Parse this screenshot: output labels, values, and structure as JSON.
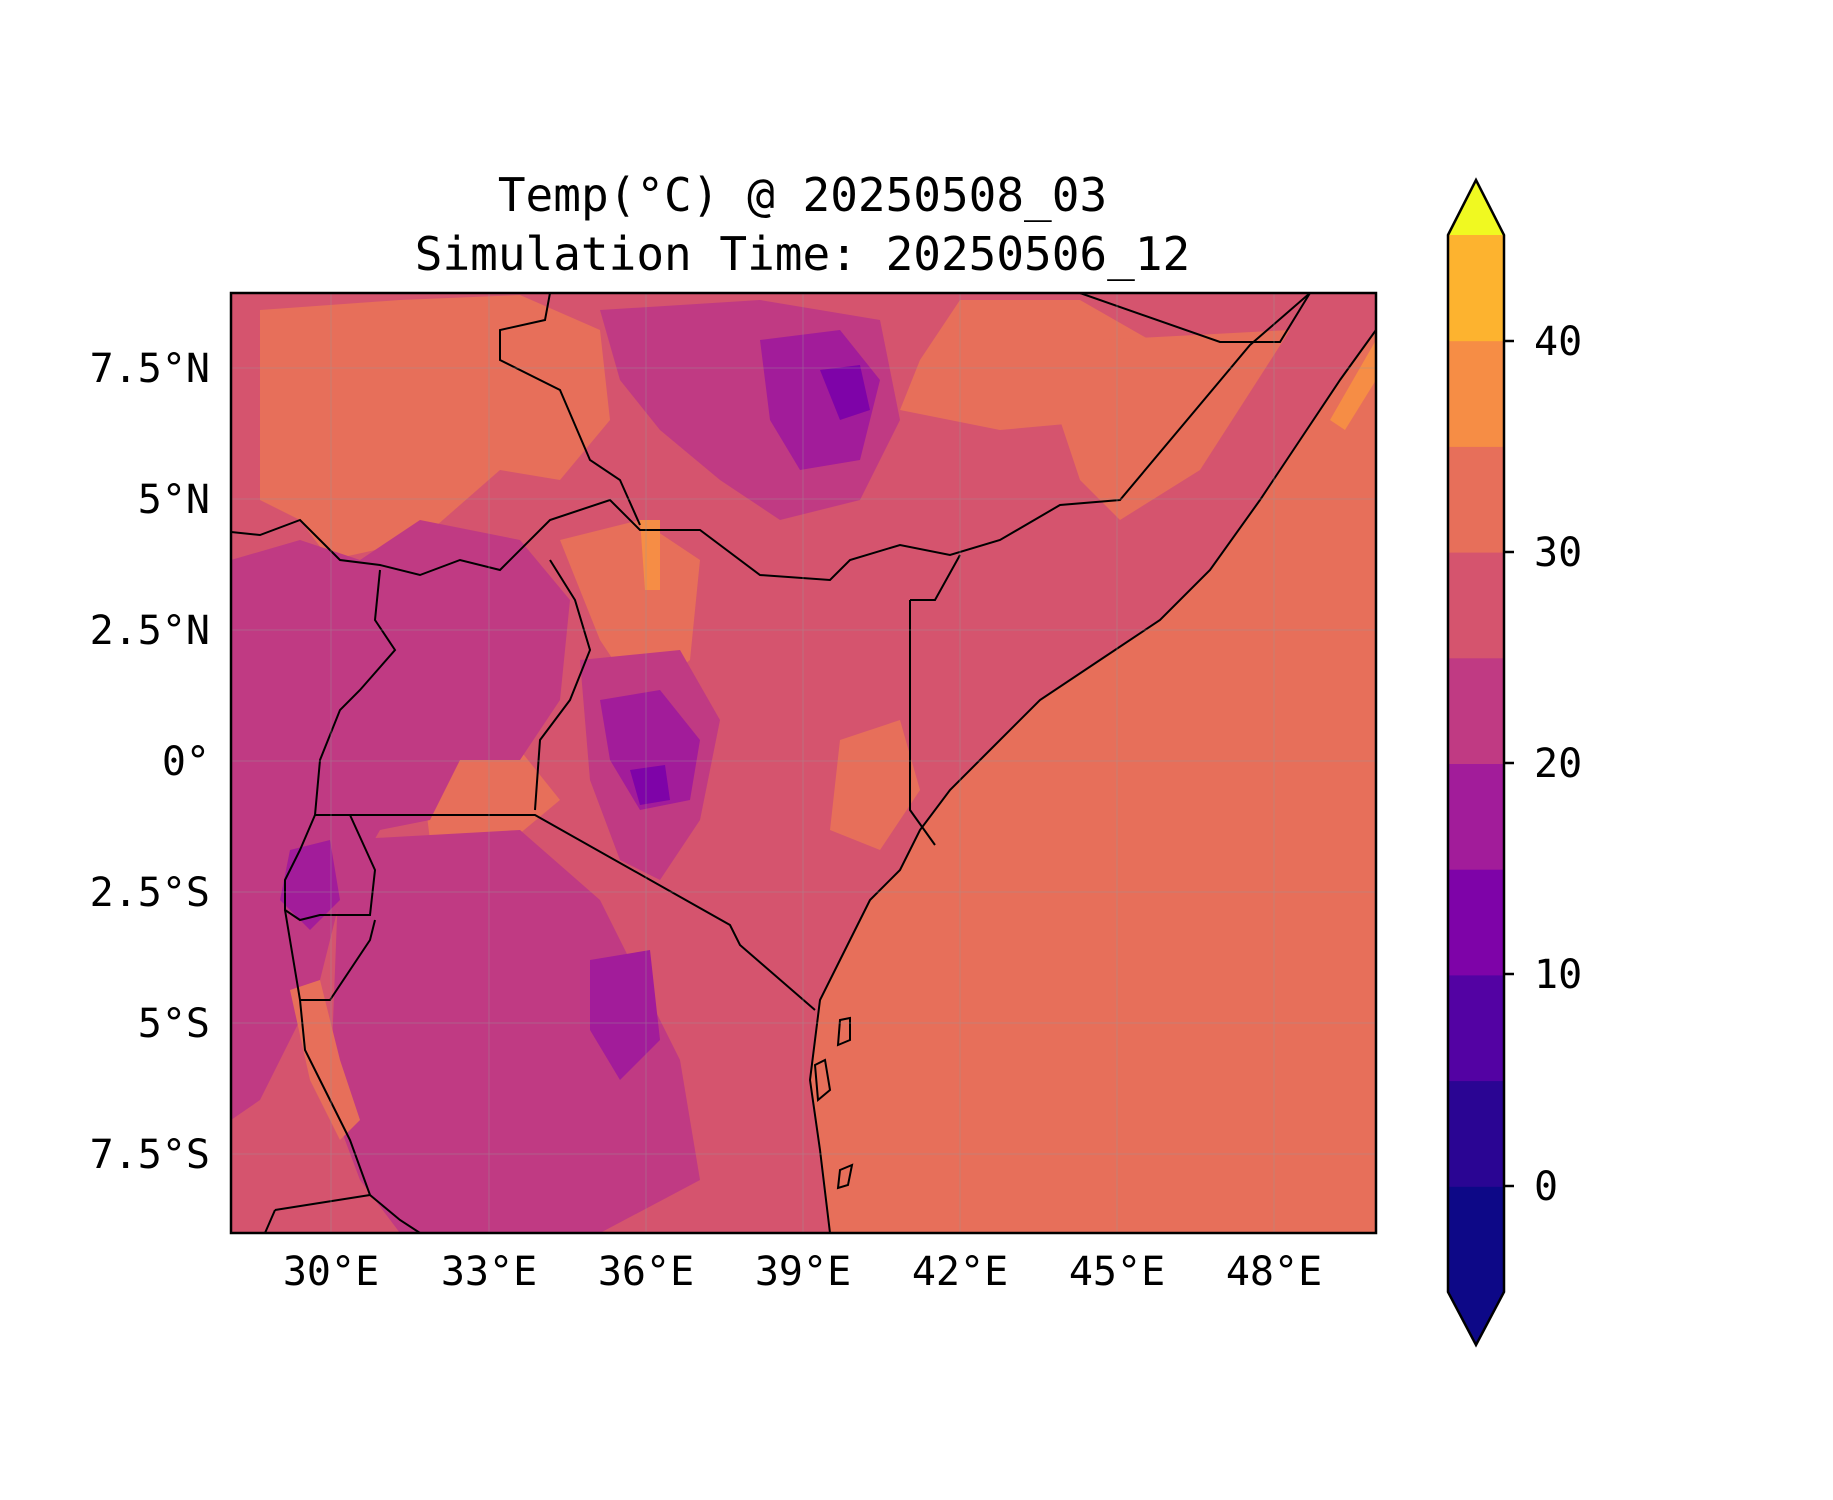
{
  "map": {
    "title_line1": "Temp(°C) @ 20250508_03",
    "title_line2": "Simulation Time: 20250506_12",
    "lon_labels": [
      "30°E",
      "33°E",
      "36°E",
      "39°E",
      "42°E",
      "45°E",
      "48°E"
    ],
    "lat_labels": [
      "7.5°N",
      "5°N",
      "2.5°N",
      "0°",
      "2.5°S",
      "5°S",
      "7.5°S"
    ],
    "colorbar": {
      "tick_labels": [
        "0",
        "10",
        "20",
        "30",
        "40"
      ],
      "levels": [
        -5,
        0,
        5,
        10,
        15,
        20,
        25,
        30,
        35,
        40,
        45
      ],
      "colors": [
        "#0d0887",
        "#2a0593",
        "#5302a3",
        "#7e03a8",
        "#a21c9a",
        "#c03a83",
        "#d5546e",
        "#e76f5a",
        "#f68d45",
        "#fdb32f",
        "#f2e02b"
      ],
      "extend_low_color": "#0d0887",
      "extend_high_color": "#f0f921"
    },
    "colors": {
      "land_base": "#d5546e",
      "ocean": "#e76f5a",
      "border": "#000000"
    }
  }
}
